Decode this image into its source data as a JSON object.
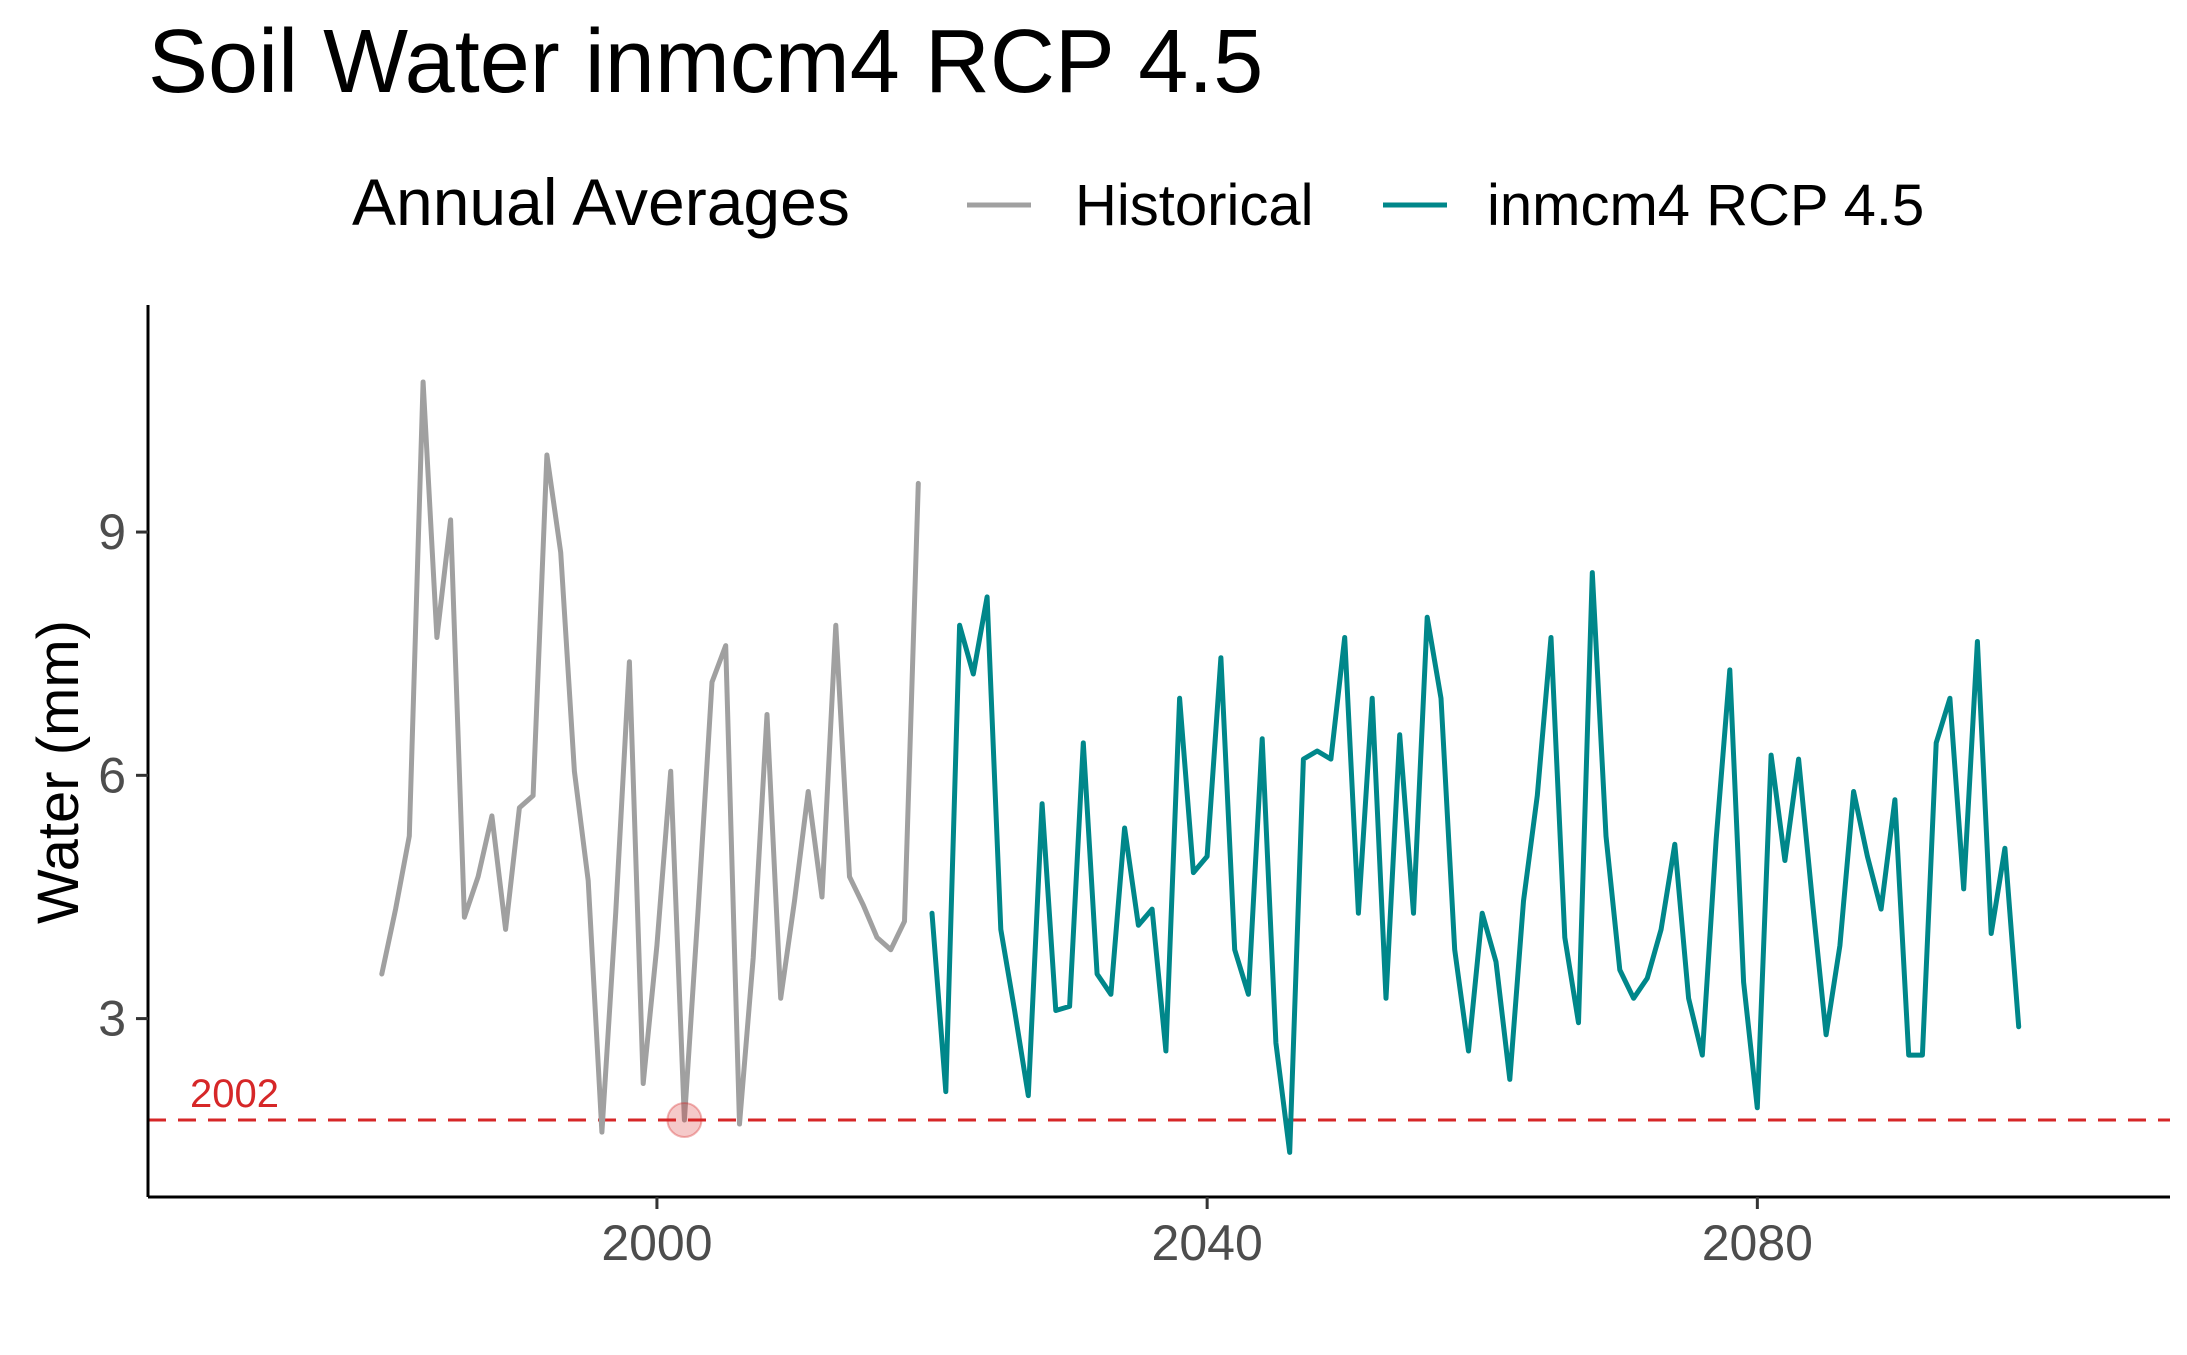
{
  "chart_data": {
    "type": "line",
    "title": "Soil Water inmcm4 RCP 4.5",
    "xlabel": "",
    "ylabel": "Water (mm)",
    "xlim": [
      1963,
      2110
    ],
    "ylim": [
      0.8,
      11.8
    ],
    "x_ticks": [
      2000,
      2040,
      2080
    ],
    "y_ticks": [
      3,
      6,
      9
    ],
    "grid": false,
    "legend": {
      "position": "top",
      "title": "Annual Averages",
      "entries": [
        "Historical",
        "inmcm4 RCP 4.5"
      ]
    },
    "series": [
      {
        "name": "Historical",
        "color": "#a0a0a0",
        "x": [
          1980,
          1981,
          1982,
          1983,
          1984,
          1985,
          1986,
          1987,
          1988,
          1989,
          1990,
          1991,
          1992,
          1993,
          1994,
          1995,
          1996,
          1997,
          1998,
          1999,
          2000,
          2001,
          2002,
          2003,
          2004,
          2005,
          2006,
          2007,
          2008,
          2009,
          2010,
          2011,
          2012,
          2013,
          2014,
          2015,
          2016,
          2017,
          2018,
          2019
        ],
        "y": [
          3.55,
          4.35,
          5.25,
          10.85,
          7.7,
          9.15,
          4.25,
          4.75,
          5.5,
          4.1,
          5.6,
          5.75,
          9.95,
          8.75,
          6.05,
          4.7,
          1.6,
          4.3,
          7.4,
          2.2,
          3.9,
          6.05,
          1.75,
          4.35,
          7.15,
          7.6,
          1.7,
          3.75,
          6.75,
          3.25,
          4.45,
          5.8,
          4.5,
          7.85,
          4.75,
          4.4,
          4.0,
          3.85,
          4.2,
          9.6
        ]
      },
      {
        "name": "inmcm4 RCP 4.5",
        "color": "#00878a",
        "x": [
          2020,
          2021,
          2022,
          2023,
          2024,
          2025,
          2026,
          2027,
          2028,
          2029,
          2030,
          2031,
          2032,
          2033,
          2034,
          2035,
          2036,
          2037,
          2038,
          2039,
          2040,
          2041,
          2042,
          2043,
          2044,
          2045,
          2046,
          2047,
          2048,
          2049,
          2050,
          2051,
          2052,
          2053,
          2054,
          2055,
          2056,
          2057,
          2058,
          2059,
          2060,
          2061,
          2062,
          2063,
          2064,
          2065,
          2066,
          2067,
          2068,
          2069,
          2070,
          2071,
          2072,
          2073,
          2074,
          2075,
          2076,
          2077,
          2078,
          2079,
          2080,
          2081,
          2082,
          2083,
          2084,
          2085,
          2086,
          2087,
          2088,
          2089,
          2090,
          2091,
          2092,
          2093,
          2094,
          2095,
          2096,
          2097,
          2098,
          2099
        ],
        "y": [
          4.3,
          2.1,
          7.85,
          7.25,
          8.2,
          4.1,
          3.1,
          2.05,
          5.65,
          3.1,
          3.15,
          6.4,
          3.55,
          3.3,
          5.35,
          4.15,
          4.35,
          2.6,
          6.95,
          4.8,
          5.0,
          7.45,
          3.85,
          3.3,
          6.45,
          2.7,
          1.35,
          6.2,
          6.3,
          6.2,
          7.7,
          4.3,
          6.95,
          3.25,
          6.5,
          4.3,
          7.95,
          6.95,
          3.85,
          2.6,
          4.3,
          3.7,
          2.25,
          4.45,
          5.75,
          7.7,
          4.0,
          2.95,
          8.5,
          5.25,
          3.6,
          3.25,
          3.5,
          4.1,
          5.15,
          3.25,
          2.55,
          5.2,
          7.3,
          3.45,
          1.9,
          6.25,
          4.95,
          6.2,
          4.45,
          2.8,
          3.9,
          5.8,
          5.0,
          4.35,
          5.7,
          2.55,
          2.55,
          6.4,
          6.95,
          4.6,
          7.65,
          4.05,
          5.1,
          2.9
        ]
      }
    ],
    "reference_line": {
      "value": 1.75,
      "label": "2002",
      "color": "#d62728",
      "style": "dashed"
    },
    "highlight_point": {
      "x": 2002,
      "y": 1.75,
      "color": "#d62728"
    }
  }
}
